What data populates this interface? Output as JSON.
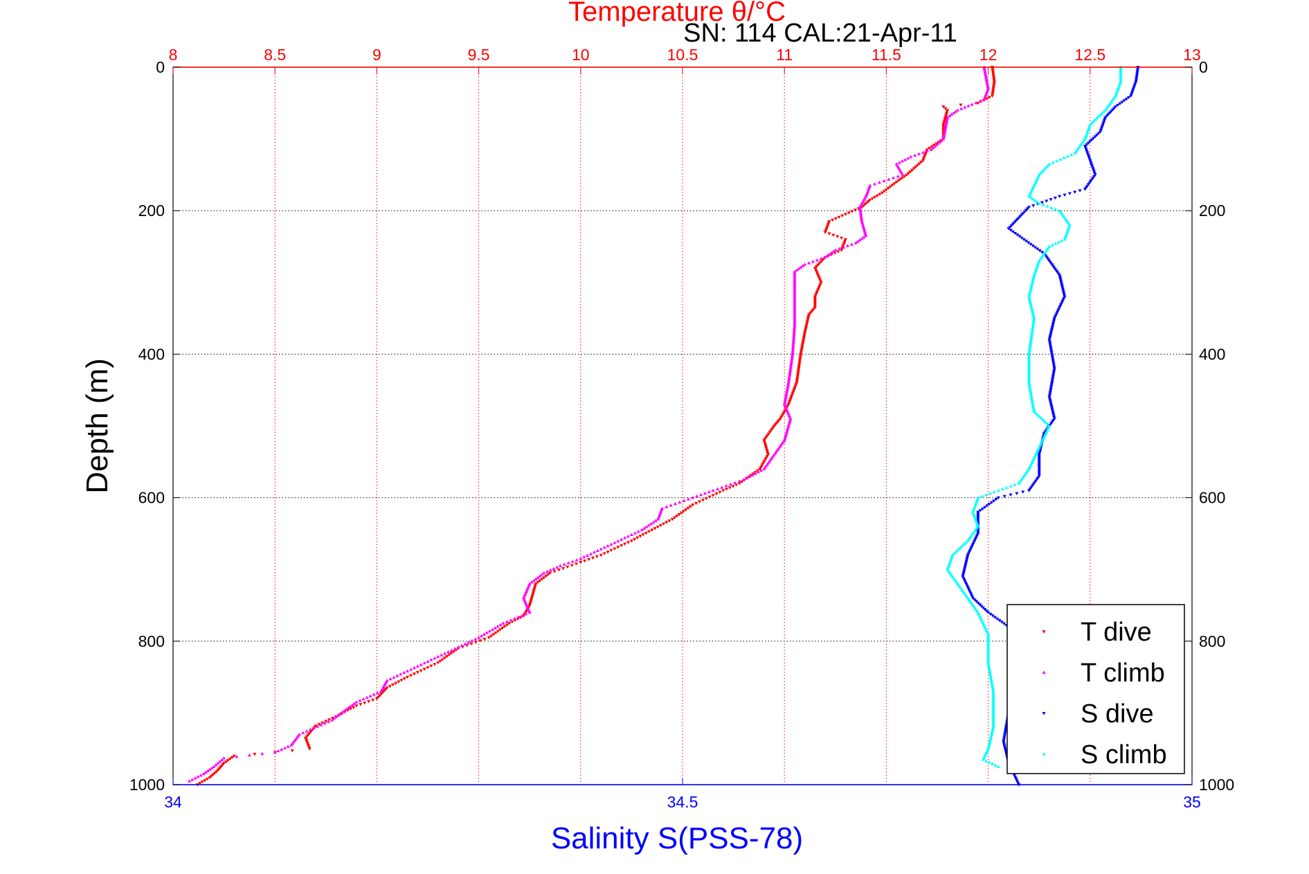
{
  "chart_data": {
    "type": "scatter",
    "title": "Temperature θ/°C",
    "subtitle": "SN: 114  CAL:21-Apr-11",
    "ylabel": "Depth (m)",
    "xlabel_bottom": "Salinity S(PSS-78)",
    "xlabel_top": "Temperature θ/°C",
    "ylim": [
      0,
      1000
    ],
    "y_reversed": true,
    "y_ticks": [
      0,
      200,
      400,
      600,
      800,
      1000
    ],
    "top_axis": {
      "range": [
        8,
        13
      ],
      "ticks": [
        8,
        8.5,
        9,
        9.5,
        10,
        10.5,
        11,
        11.5,
        12,
        12.5,
        13
      ],
      "color": "#ff0000"
    },
    "bottom_axis": {
      "range": [
        34,
        35
      ],
      "ticks": [
        34,
        34.5,
        35
      ],
      "color": "#0000ff"
    },
    "grid": true,
    "legend": {
      "placement": "bottom-right"
    },
    "series": [
      {
        "name": "T dive",
        "axis": "top",
        "color": "#ff0000",
        "marker": "triangle-down",
        "points": [
          [
            12.02,
            0
          ],
          [
            12.03,
            20
          ],
          [
            12.02,
            40
          ],
          [
            11.95,
            50
          ],
          [
            11.78,
            55
          ],
          [
            11.8,
            60
          ],
          [
            11.78,
            80
          ],
          [
            11.78,
            100
          ],
          [
            11.7,
            115
          ],
          [
            11.68,
            130
          ],
          [
            11.6,
            150
          ],
          [
            11.55,
            160
          ],
          [
            11.48,
            175
          ],
          [
            11.42,
            185
          ],
          [
            11.38,
            195
          ],
          [
            11.3,
            205
          ],
          [
            11.22,
            215
          ],
          [
            11.2,
            230
          ],
          [
            11.3,
            240
          ],
          [
            11.28,
            255
          ],
          [
            11.2,
            265
          ],
          [
            11.15,
            280
          ],
          [
            11.18,
            300
          ],
          [
            11.15,
            320
          ],
          [
            11.15,
            335
          ],
          [
            11.12,
            345
          ],
          [
            11.1,
            370
          ],
          [
            11.08,
            400
          ],
          [
            11.06,
            440
          ],
          [
            11.02,
            470
          ],
          [
            10.98,
            490
          ],
          [
            10.95,
            500
          ],
          [
            10.9,
            520
          ],
          [
            10.92,
            540
          ],
          [
            10.88,
            560
          ],
          [
            10.78,
            580
          ],
          [
            10.7,
            590
          ],
          [
            10.55,
            610
          ],
          [
            10.45,
            630
          ],
          [
            10.35,
            645
          ],
          [
            10.25,
            660
          ],
          [
            10.1,
            680
          ],
          [
            10.0,
            690
          ],
          [
            9.85,
            705
          ],
          [
            9.78,
            720
          ],
          [
            9.75,
            750
          ],
          [
            9.72,
            765
          ],
          [
            9.65,
            775
          ],
          [
            9.55,
            795
          ],
          [
            9.4,
            810
          ],
          [
            9.3,
            830
          ],
          [
            9.15,
            850
          ],
          [
            9.05,
            865
          ],
          [
            9.0,
            880
          ],
          [
            8.9,
            890
          ],
          [
            8.8,
            905
          ],
          [
            8.7,
            918
          ],
          [
            8.65,
            935
          ],
          [
            8.67,
            950
          ],
          [
            8.5,
            955
          ],
          [
            8.3,
            960
          ],
          [
            8.25,
            970
          ],
          [
            8.22,
            980
          ],
          [
            8.18,
            990
          ],
          [
            8.12,
            1000
          ]
        ]
      },
      {
        "name": "T climb",
        "axis": "top",
        "color": "#ff00ff",
        "marker": "triangle-up",
        "points": [
          [
            11.98,
            0
          ],
          [
            12.0,
            30
          ],
          [
            11.98,
            45
          ],
          [
            11.92,
            52
          ],
          [
            11.85,
            60
          ],
          [
            11.8,
            70
          ],
          [
            11.78,
            100
          ],
          [
            11.72,
            115
          ],
          [
            11.62,
            125
          ],
          [
            11.55,
            135
          ],
          [
            11.58,
            150
          ],
          [
            11.42,
            165
          ],
          [
            11.4,
            180
          ],
          [
            11.37,
            195
          ],
          [
            11.38,
            215
          ],
          [
            11.4,
            235
          ],
          [
            11.35,
            245
          ],
          [
            11.25,
            255
          ],
          [
            11.2,
            265
          ],
          [
            11.1,
            275
          ],
          [
            11.05,
            285
          ],
          [
            11.05,
            320
          ],
          [
            11.05,
            360
          ],
          [
            11.04,
            400
          ],
          [
            11.02,
            440
          ],
          [
            11.0,
            470
          ],
          [
            11.03,
            490
          ],
          [
            11.0,
            520
          ],
          [
            10.95,
            540
          ],
          [
            10.9,
            560
          ],
          [
            10.8,
            575
          ],
          [
            10.65,
            590
          ],
          [
            10.55,
            600
          ],
          [
            10.4,
            615
          ],
          [
            10.38,
            630
          ],
          [
            10.3,
            645
          ],
          [
            10.15,
            665
          ],
          [
            10.0,
            685
          ],
          [
            9.9,
            695
          ],
          [
            9.82,
            705
          ],
          [
            9.75,
            720
          ],
          [
            9.72,
            740
          ],
          [
            9.75,
            760
          ],
          [
            9.62,
            775
          ],
          [
            9.5,
            795
          ],
          [
            9.35,
            815
          ],
          [
            9.2,
            835
          ],
          [
            9.05,
            855
          ],
          [
            9.02,
            870
          ],
          [
            8.9,
            885
          ],
          [
            8.85,
            895
          ],
          [
            8.78,
            910
          ],
          [
            8.62,
            930
          ],
          [
            8.58,
            945
          ],
          [
            8.5,
            955
          ],
          [
            8.25,
            963
          ],
          [
            8.2,
            975
          ],
          [
            8.15,
            985
          ],
          [
            8.08,
            995
          ]
        ]
      },
      {
        "name": "S dive",
        "axis": "bottom",
        "color": "#0000ff",
        "marker": "triangle-down",
        "points": [
          [
            34.947,
            0
          ],
          [
            34.945,
            20
          ],
          [
            34.94,
            40
          ],
          [
            34.925,
            55
          ],
          [
            34.915,
            70
          ],
          [
            34.91,
            90
          ],
          [
            34.895,
            110
          ],
          [
            34.9,
            130
          ],
          [
            34.905,
            150
          ],
          [
            34.895,
            170
          ],
          [
            34.87,
            180
          ],
          [
            34.84,
            195
          ],
          [
            34.83,
            210
          ],
          [
            34.82,
            225
          ],
          [
            34.835,
            240
          ],
          [
            34.855,
            260
          ],
          [
            34.87,
            290
          ],
          [
            34.875,
            320
          ],
          [
            34.865,
            350
          ],
          [
            34.86,
            380
          ],
          [
            34.865,
            420
          ],
          [
            34.86,
            460
          ],
          [
            34.865,
            490
          ],
          [
            34.855,
            510
          ],
          [
            34.85,
            540
          ],
          [
            34.85,
            570
          ],
          [
            34.84,
            590
          ],
          [
            34.81,
            600
          ],
          [
            34.79,
            620
          ],
          [
            34.79,
            650
          ],
          [
            34.78,
            680
          ],
          [
            34.775,
            710
          ],
          [
            34.785,
            740
          ],
          [
            34.8,
            760
          ],
          [
            34.82,
            780
          ],
          [
            34.83,
            820
          ],
          [
            34.825,
            860
          ],
          [
            34.82,
            900
          ],
          [
            34.815,
            940
          ],
          [
            34.82,
            970
          ],
          [
            34.83,
            1000
          ]
        ]
      },
      {
        "name": "S climb",
        "axis": "bottom",
        "color": "#00ffff",
        "marker": "triangle-up",
        "points": [
          [
            34.93,
            0
          ],
          [
            34.93,
            20
          ],
          [
            34.925,
            40
          ],
          [
            34.915,
            60
          ],
          [
            34.9,
            80
          ],
          [
            34.895,
            100
          ],
          [
            34.885,
            120
          ],
          [
            34.86,
            135
          ],
          [
            34.85,
            150
          ],
          [
            34.845,
            165
          ],
          [
            34.84,
            180
          ],
          [
            34.85,
            190
          ],
          [
            34.87,
            200
          ],
          [
            34.88,
            220
          ],
          [
            34.875,
            240
          ],
          [
            34.86,
            250
          ],
          [
            34.85,
            270
          ],
          [
            34.845,
            290
          ],
          [
            34.84,
            320
          ],
          [
            34.845,
            350
          ],
          [
            34.84,
            400
          ],
          [
            34.84,
            440
          ],
          [
            34.845,
            480
          ],
          [
            34.86,
            500
          ],
          [
            34.85,
            530
          ],
          [
            34.84,
            560
          ],
          [
            34.83,
            580
          ],
          [
            34.81,
            590
          ],
          [
            34.79,
            600
          ],
          [
            34.785,
            620
          ],
          [
            34.79,
            640
          ],
          [
            34.78,
            660
          ],
          [
            34.765,
            680
          ],
          [
            34.76,
            700
          ],
          [
            34.77,
            720
          ],
          [
            34.78,
            740
          ],
          [
            34.79,
            760
          ],
          [
            34.8,
            790
          ],
          [
            34.8,
            830
          ],
          [
            34.805,
            870
          ],
          [
            34.805,
            920
          ],
          [
            34.8,
            950
          ],
          [
            34.795,
            965
          ],
          [
            34.81,
            975
          ]
        ]
      }
    ]
  }
}
